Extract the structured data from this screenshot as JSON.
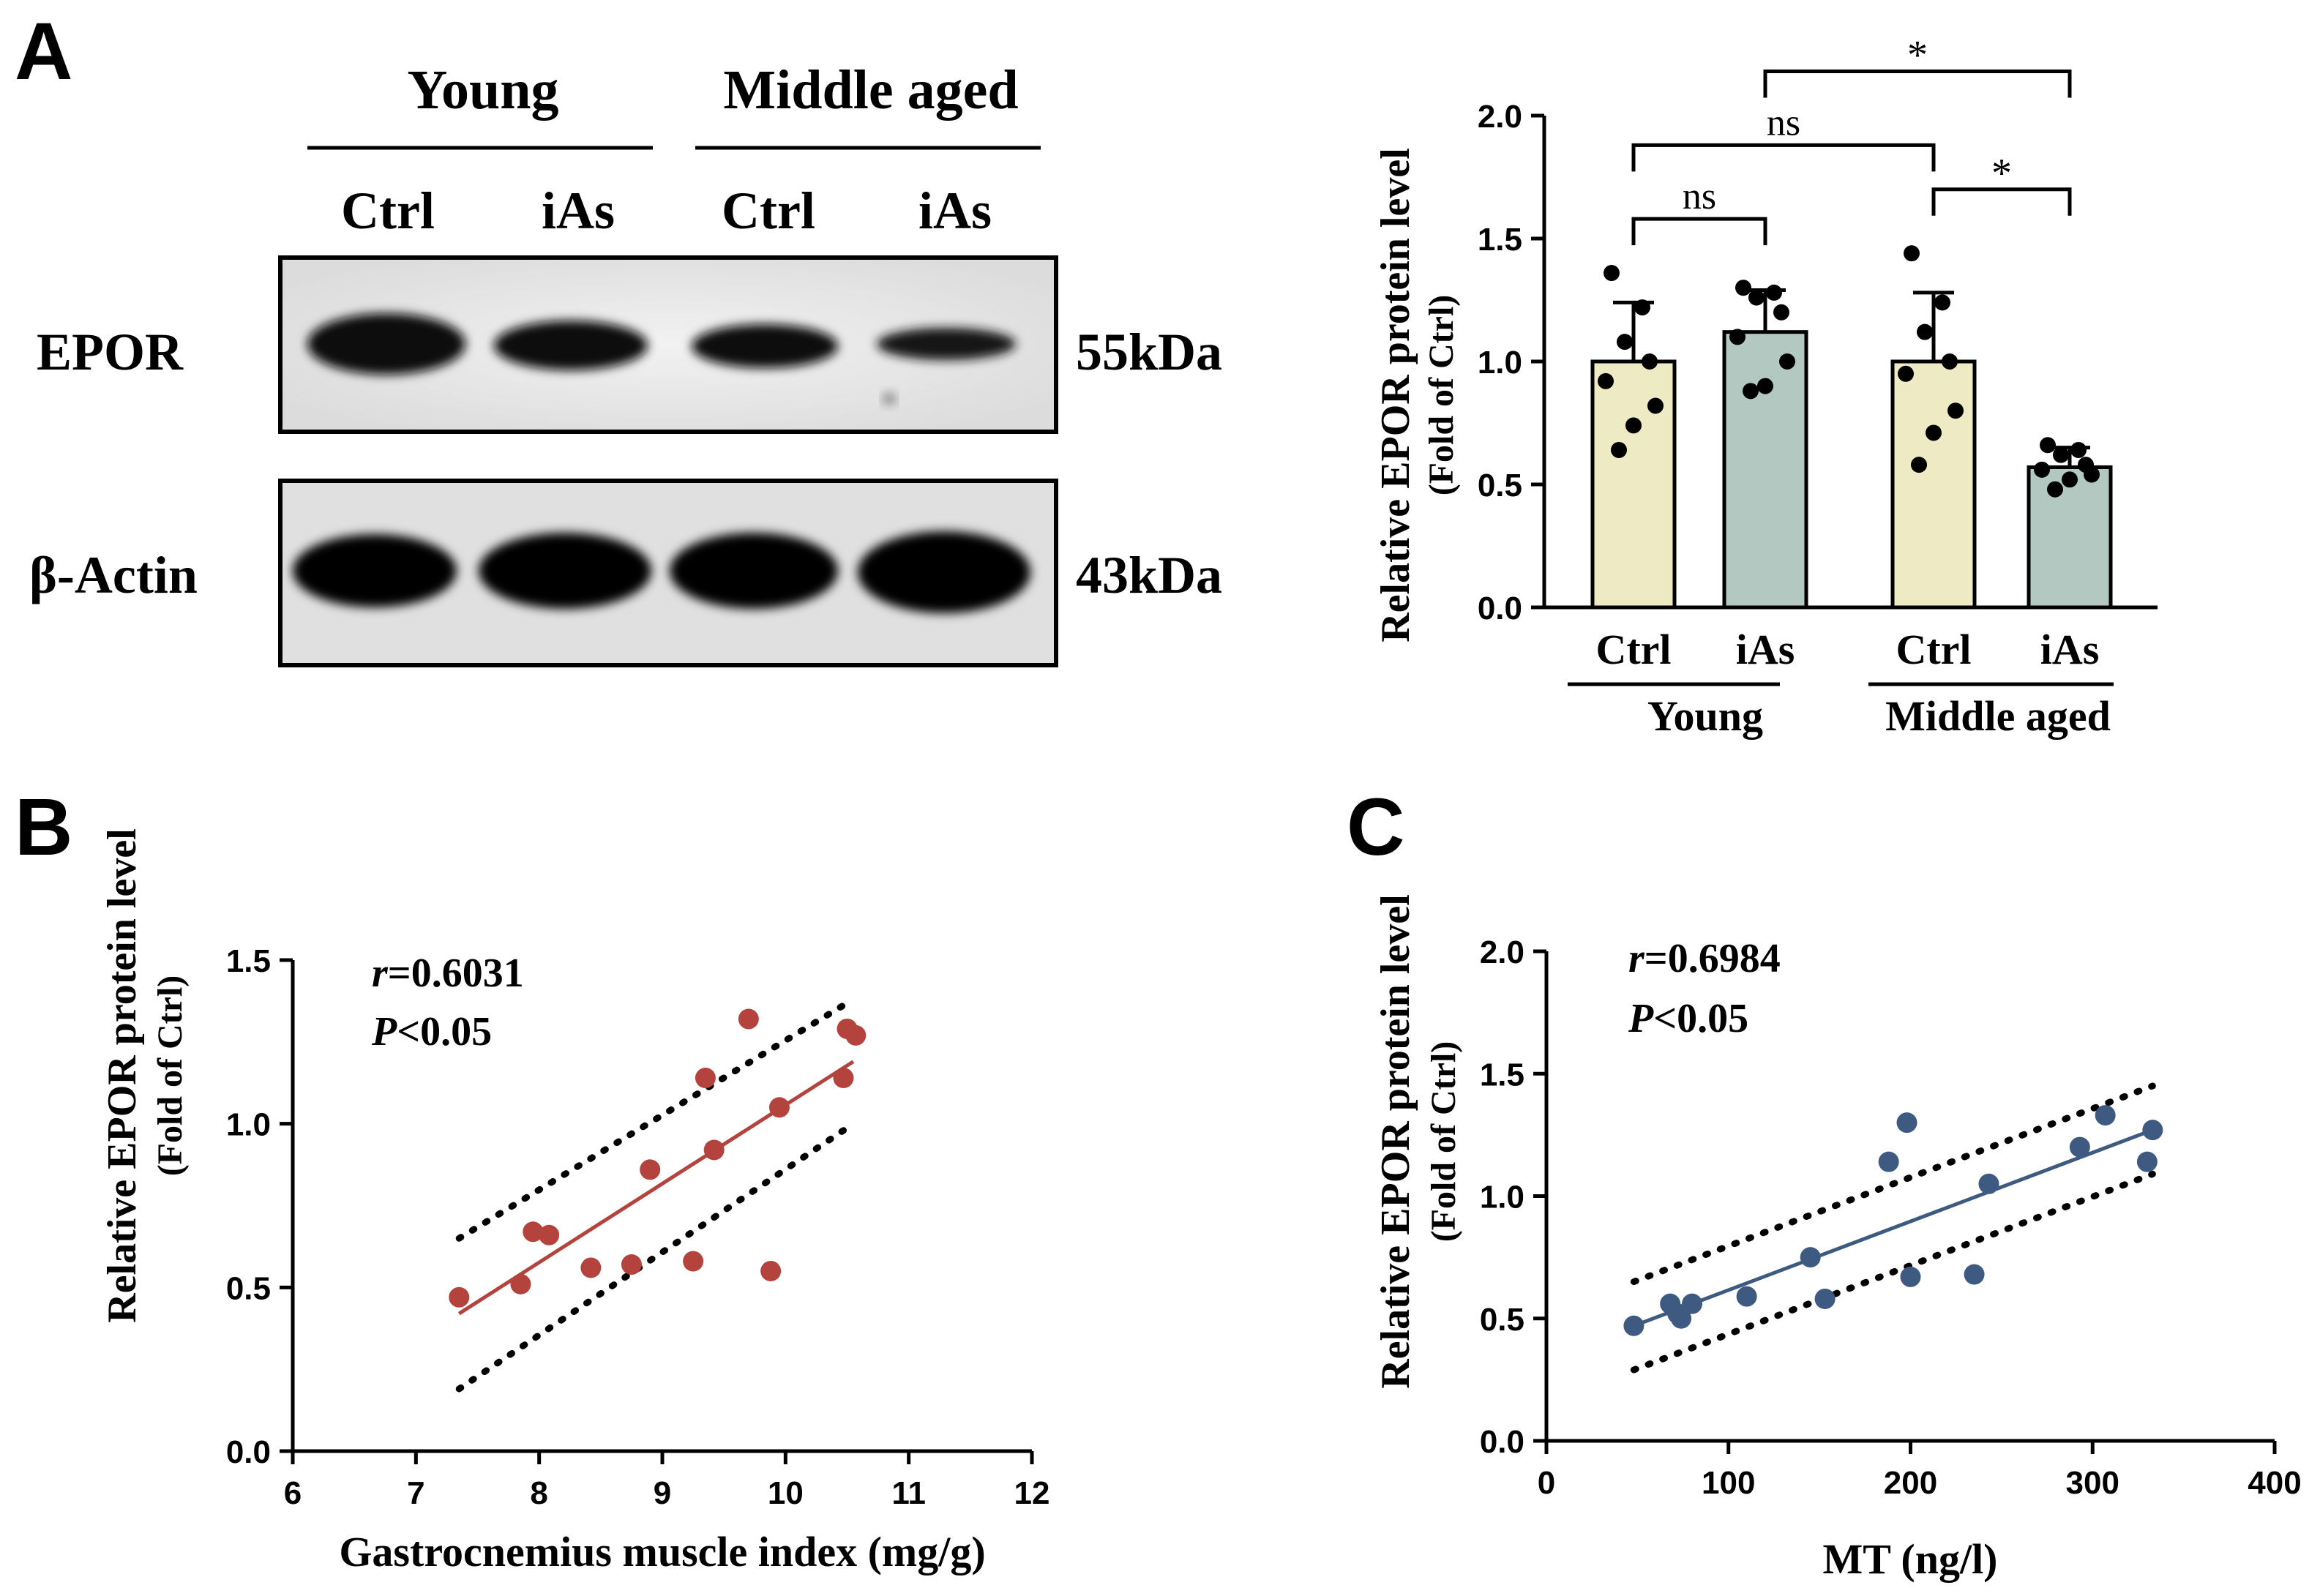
{
  "panels": {
    "a": {
      "label": "A",
      "blot": {
        "groups": [
          "Young",
          "Middle aged"
        ],
        "lanes": [
          "Ctrl",
          "iAs",
          "Ctrl",
          "iAs"
        ],
        "bands": [
          {
            "name": "EPOR",
            "size": "55kDa"
          },
          {
            "name": "β-Actin",
            "size": "43kDa"
          }
        ]
      }
    },
    "b": {
      "label": "B"
    },
    "c": {
      "label": "C"
    }
  },
  "chart_data": [
    {
      "panel": "A",
      "type": "bar",
      "ylabel": "Relative EPOR protein level",
      "ylabel_sub": "(Fold of Ctrl)",
      "ylim": [
        0,
        2.0
      ],
      "yticks": [
        0.0,
        0.5,
        1.0,
        1.5,
        2.0
      ],
      "ytick_labels": [
        "0.0",
        "0.5",
        "1.0",
        "1.5",
        "2.0"
      ],
      "categories": [
        "Ctrl",
        "iAs",
        "Ctrl",
        "iAs"
      ],
      "groups": [
        "Young",
        "Middle aged"
      ],
      "values": [
        1.0,
        1.12,
        1.0,
        0.57
      ],
      "errors": [
        0.24,
        0.17,
        0.28,
        0.08
      ],
      "bar_colors": [
        "#eeeac4",
        "#b3c8c0",
        "#eeeac4",
        "#b3c8c0"
      ],
      "points": [
        [
          1.36,
          1.22,
          1.08,
          1.0,
          0.92,
          0.82,
          0.74,
          0.64
        ],
        [
          1.3,
          1.28,
          1.26,
          1.2,
          1.1,
          1.0,
          0.9,
          0.88
        ],
        [
          1.44,
          1.24,
          1.12,
          1.0,
          0.95,
          0.8,
          0.71,
          0.58
        ],
        [
          0.66,
          0.64,
          0.62,
          0.58,
          0.56,
          0.54,
          0.52,
          0.48
        ]
      ],
      "comparisons": [
        {
          "from": 0,
          "to": 1,
          "label": "ns",
          "level": 1.58
        },
        {
          "from": 0,
          "to": 2,
          "label": "ns",
          "level": 1.88
        },
        {
          "from": 2,
          "to": 3,
          "label": "*",
          "level": 1.7
        },
        {
          "from": 1,
          "to": 3,
          "label": "*",
          "level": 2.18
        }
      ]
    },
    {
      "panel": "B",
      "type": "scatter",
      "r_label": "r",
      "r_value": "=0.6031",
      "p_label": "P",
      "p_value": "<0.05",
      "xlabel": "Gastrocnemius muscle index (mg/g)",
      "ylabel": "Relative EPOR protein level",
      "ylabel_sub": "(Fold of Ctrl)",
      "xlim": [
        6,
        12
      ],
      "ylim": [
        0,
        1.5
      ],
      "xticks": [
        6,
        7,
        8,
        9,
        10,
        11,
        12
      ],
      "xtick_labels": [
        "6",
        "7",
        "8",
        "9",
        "10",
        "11",
        "12"
      ],
      "yticks": [
        0.0,
        0.5,
        1.0,
        1.5
      ],
      "ytick_labels": [
        "0.0",
        "0.5",
        "1.0",
        "1.5"
      ],
      "color": "#b5433d",
      "x": [
        7.35,
        7.85,
        7.95,
        8.08,
        8.42,
        8.75,
        8.9,
        9.25,
        9.35,
        9.42,
        9.7,
        9.88,
        9.95,
        10.47,
        10.5,
        10.57
      ],
      "y": [
        0.47,
        0.51,
        0.67,
        0.66,
        0.56,
        0.57,
        0.86,
        0.58,
        1.14,
        0.92,
        1.32,
        0.55,
        1.05,
        1.14,
        1.29,
        1.27
      ],
      "fit": [
        [
          7.35,
          0.42
        ],
        [
          10.55,
          1.19
        ]
      ],
      "ci_upper": [
        [
          7.35,
          0.65
        ],
        [
          10.55,
          1.38
        ]
      ],
      "ci_lower": [
        [
          7.35,
          0.19
        ],
        [
          10.55,
          1.0
        ]
      ]
    },
    {
      "panel": "C",
      "type": "scatter",
      "r_label": "r",
      "r_value": "=0.6984",
      "p_label": "P",
      "p_value": "<0.05",
      "xlabel": "MT (ng/l)",
      "ylabel": "Relative EPOR protein level",
      "ylabel_sub": "(Fold of Ctrl)",
      "xlim": [
        0,
        400
      ],
      "ylim": [
        0,
        2.0
      ],
      "xticks": [
        0,
        100,
        200,
        300,
        400
      ],
      "xtick_labels": [
        "0",
        "100",
        "200",
        "300",
        "400"
      ],
      "yticks": [
        0.0,
        0.5,
        1.0,
        1.5,
        2.0
      ],
      "ytick_labels": [
        "0.0",
        "0.5",
        "1.0",
        "1.5",
        "2.0"
      ],
      "color": "#3e5a80",
      "x": [
        48,
        68,
        72,
        74,
        80,
        110,
        145,
        153,
        188,
        198,
        200,
        235,
        243,
        293,
        307,
        330,
        333
      ],
      "y": [
        0.47,
        0.56,
        0.52,
        0.5,
        0.56,
        0.59,
        0.75,
        0.58,
        1.14,
        1.3,
        0.67,
        0.68,
        1.05,
        1.2,
        1.33,
        1.14,
        1.27
      ],
      "fit": [
        [
          48,
          0.47
        ],
        [
          333,
          1.27
        ]
      ],
      "ci_upper": [
        [
          48,
          0.65
        ],
        [
          333,
          1.45
        ]
      ],
      "ci_lower": [
        [
          48,
          0.29
        ],
        [
          333,
          1.09
        ]
      ]
    }
  ]
}
